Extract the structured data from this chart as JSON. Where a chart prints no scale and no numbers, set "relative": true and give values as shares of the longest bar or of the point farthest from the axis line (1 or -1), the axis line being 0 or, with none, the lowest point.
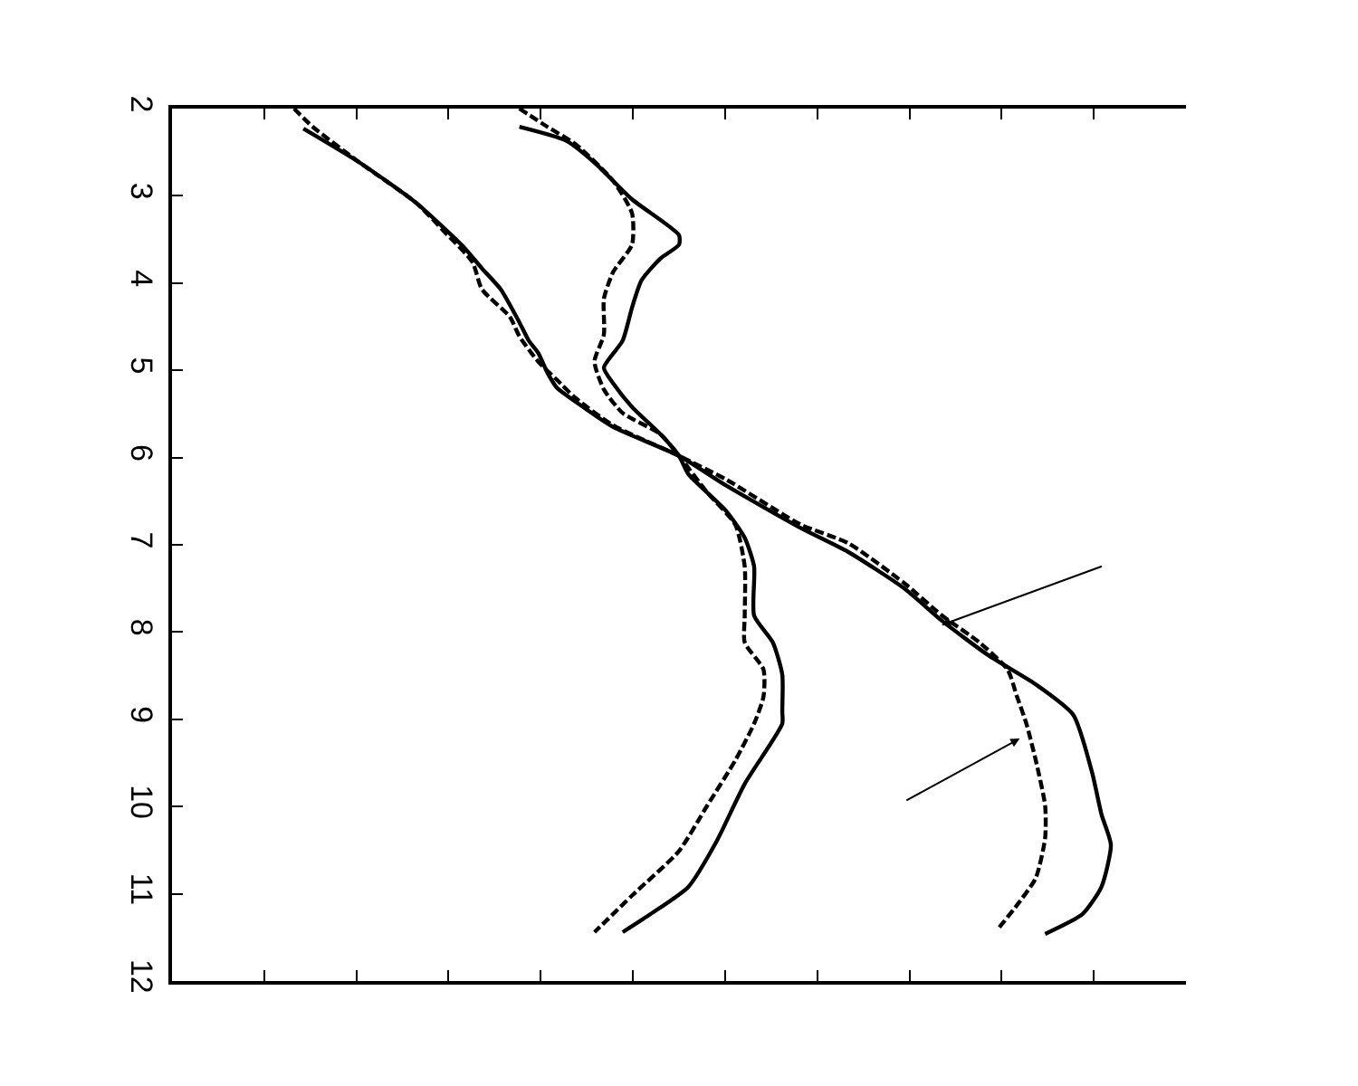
{
  "chart_data": {
    "type": "line",
    "orientation": "horizontal",
    "relative": true,
    "ylim": [
      12,
      2
    ],
    "yticks": [
      2,
      3,
      4,
      5,
      6,
      7,
      8,
      9,
      10,
      11,
      12
    ],
    "tick_labels": "y",
    "marker": "none",
    "series": [
      {
        "color": "#000000",
        "line_style": "solid",
        "x": [
          2.23,
          2.62,
          3.08,
          3.58,
          3.83,
          4.07,
          4.45,
          4.66,
          4.8,
          5.03,
          5.2,
          5.36,
          5.65,
          5.98,
          6.32,
          6.81,
          7.08,
          7.5,
          7.87,
          8.27,
          8.6,
          8.95,
          9.61,
          10.09,
          10.44,
          10.92,
          11.23,
          11.46
        ],
        "values": [
          0.14,
          0.2,
          0.26,
          0.31,
          0.33,
          0.35,
          0.37,
          0.38,
          0.39,
          0.4,
          0.41,
          0.43,
          0.47,
          0.54,
          0.59,
          0.67,
          0.72,
          0.78,
          0.82,
          0.87,
          0.92,
          0.96,
          0.98,
          0.99,
          1,
          0.99,
          0.97,
          0.93
        ]
      },
      {
        "color": "#000000",
        "line_style": "dashed",
        "x": [
          2.0,
          2.21,
          2.62,
          3.08,
          3.41,
          3.76,
          4.07,
          4.39,
          4.61,
          4.9,
          5.11,
          5.32,
          5.63,
          5.98,
          6.25,
          6.77,
          6.98,
          7.44,
          7.81,
          8.12,
          8.43,
          8.74,
          9.05,
          9.47,
          9.99,
          10.36,
          10.82,
          11.13,
          11.4
        ],
        "values": [
          0.13,
          0.15,
          0.2,
          0.26,
          0.29,
          0.32,
          0.33,
          0.36,
          0.37,
          0.39,
          0.41,
          0.43,
          0.47,
          0.54,
          0.59,
          0.67,
          0.72,
          0.78,
          0.82,
          0.86,
          0.89,
          0.9,
          0.91,
          0.92,
          0.93,
          0.93,
          0.92,
          0.9,
          0.88
        ]
      },
      {
        "color": "#000000",
        "line_style": "solid",
        "x": [
          2.21,
          2.37,
          2.62,
          3.04,
          3.45,
          3.56,
          3.72,
          3.97,
          4.28,
          4.66,
          4.97,
          5.15,
          5.42,
          5.73,
          5.98,
          6.19,
          6.61,
          6.92,
          7.25,
          7.81,
          8.12,
          8.49,
          8.91,
          9.05,
          9.74,
          10.4,
          10.92,
          11.23,
          11.44
        ],
        "values": [
          0.37,
          0.42,
          0.45,
          0.49,
          0.54,
          0.54,
          0.52,
          0.5,
          0.49,
          0.48,
          0.46,
          0.47,
          0.49,
          0.52,
          0.54,
          0.55,
          0.59,
          0.61,
          0.62,
          0.62,
          0.64,
          0.65,
          0.65,
          0.65,
          0.61,
          0.58,
          0.55,
          0.51,
          0.48
        ]
      },
      {
        "color": "#000000",
        "line_style": "dashed",
        "x": [
          2.0,
          2.21,
          2.41,
          2.83,
          3.2,
          3.56,
          3.87,
          4.18,
          4.59,
          4.9,
          5.22,
          5.49,
          5.73,
          5.98,
          6.4,
          6.77,
          7.25,
          7.81,
          8.12,
          8.43,
          8.74,
          9.05,
          9.47,
          9.99,
          10.51,
          11.02,
          11.44
        ],
        "values": [
          0.37,
          0.4,
          0.43,
          0.47,
          0.49,
          0.49,
          0.47,
          0.46,
          0.46,
          0.45,
          0.46,
          0.48,
          0.52,
          0.54,
          0.57,
          0.6,
          0.61,
          0.61,
          0.61,
          0.63,
          0.63,
          0.62,
          0.6,
          0.57,
          0.54,
          0.49,
          0.45
        ]
      }
    ]
  }
}
